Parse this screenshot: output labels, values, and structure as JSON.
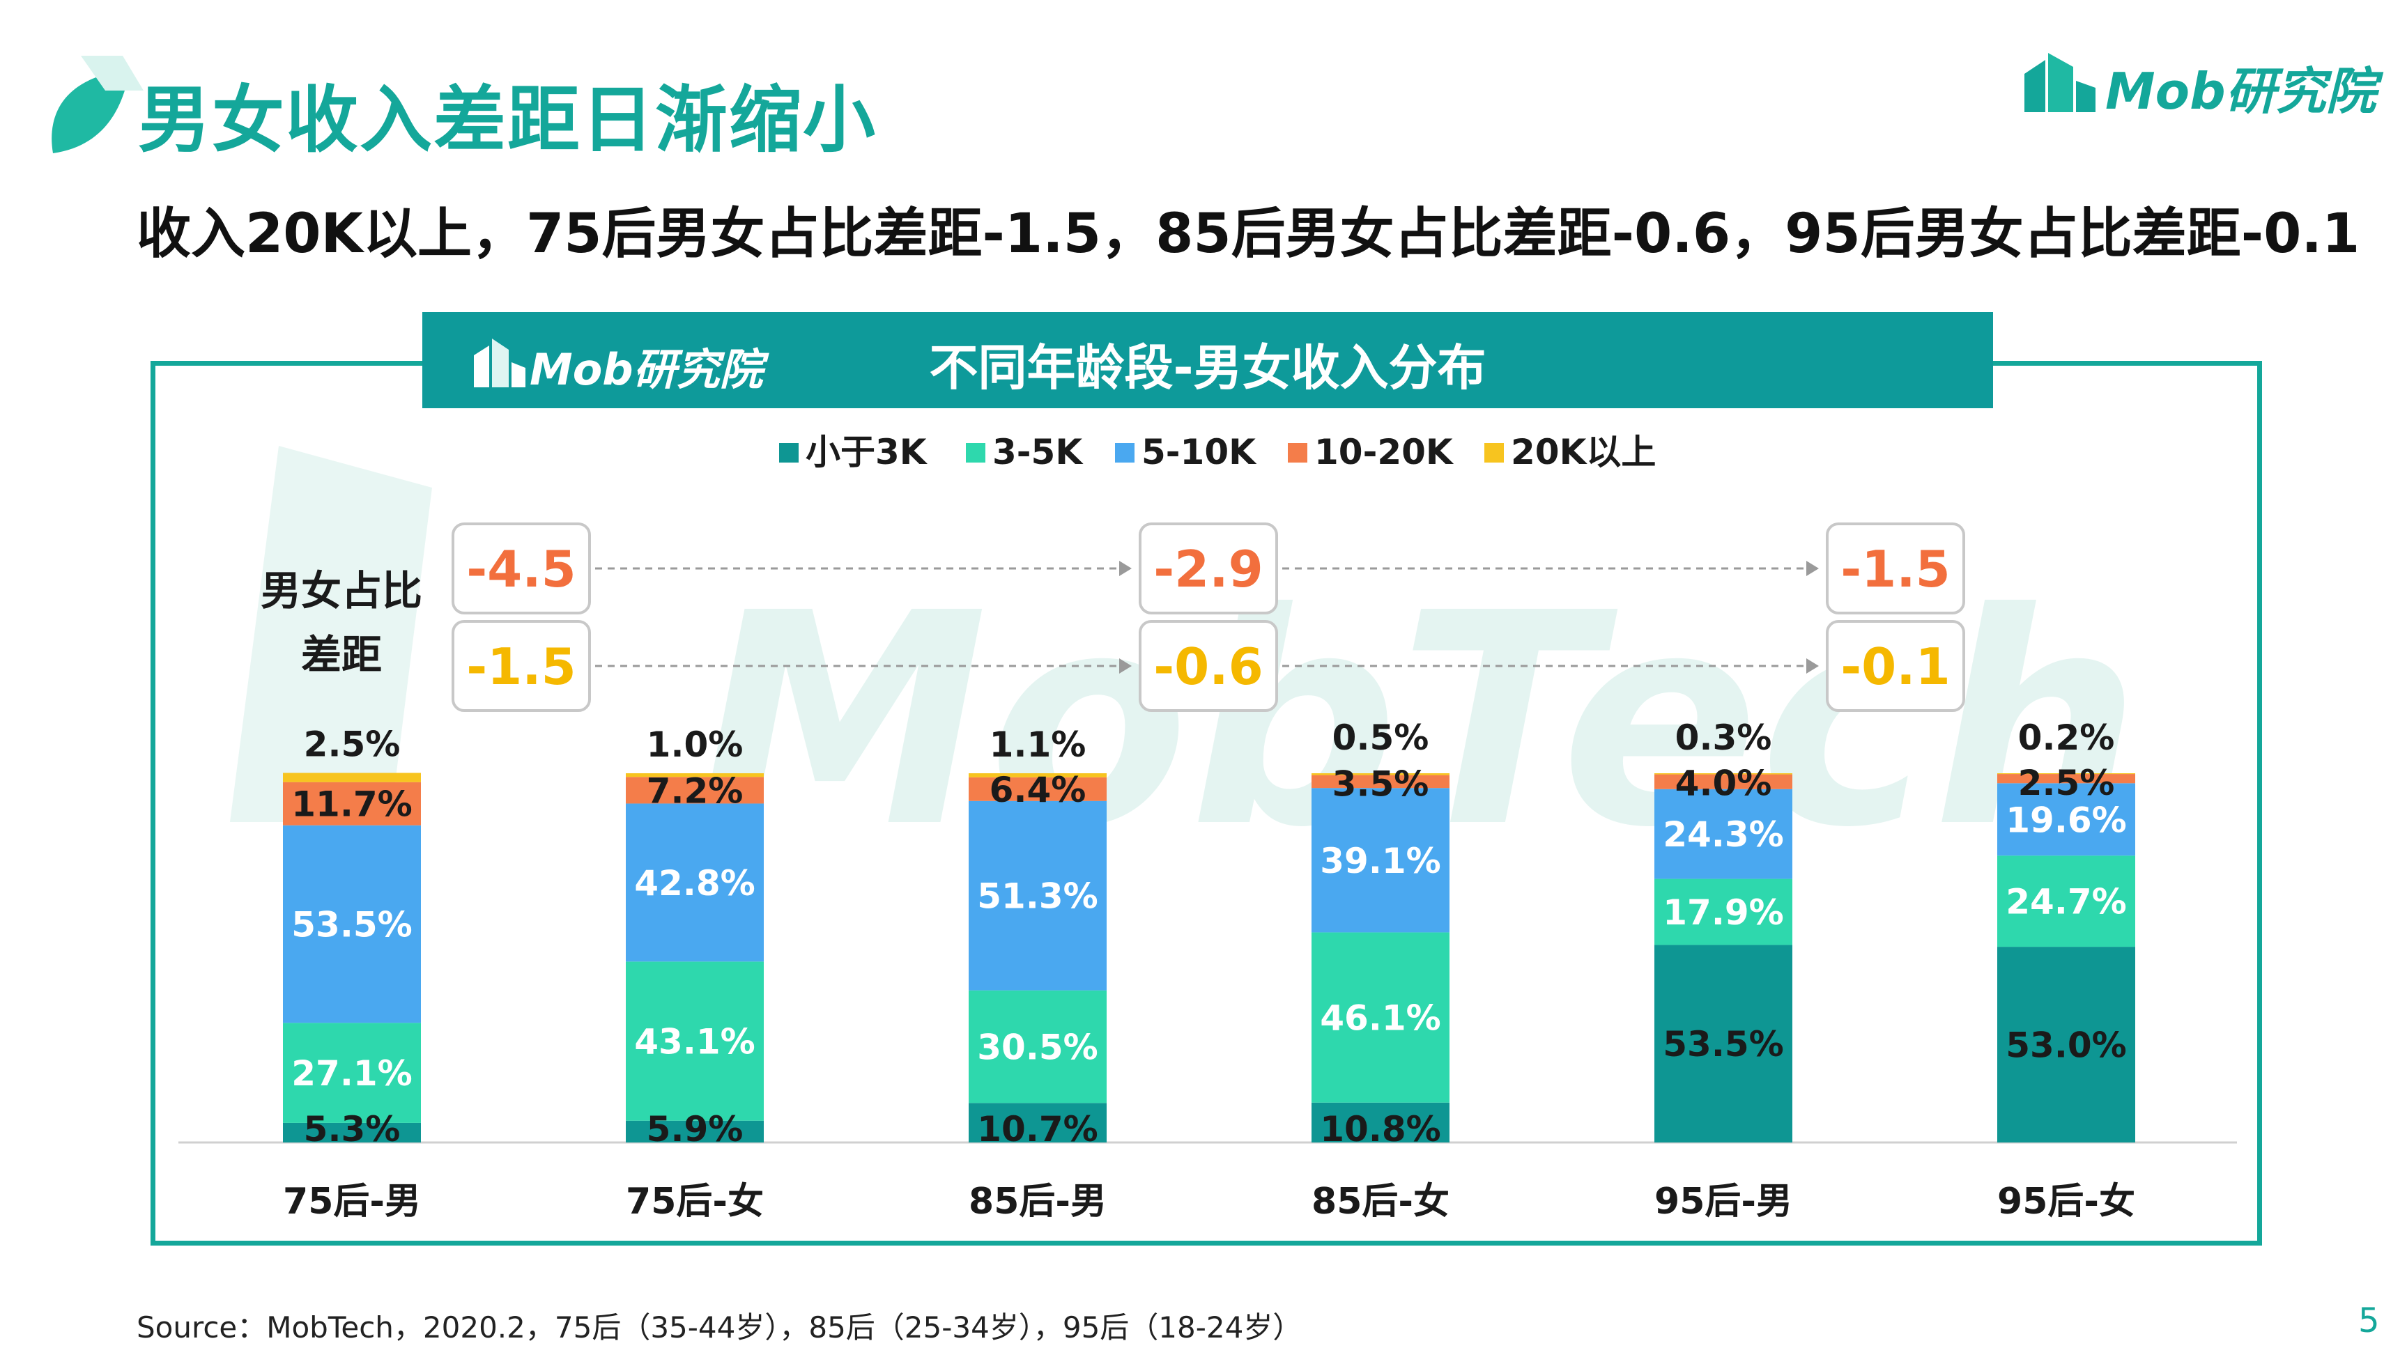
{
  "slide": {
    "title": "男女收入差距日渐缩小",
    "headline": "收入20K以上，75后男女占比差距-1.5，85后男女占比差距-0.6，95后男女占比差距-0.1",
    "logo_text": "Mob研究院",
    "source": "Source：MobTech，2020.2，75后（35-44岁），85后（25-34岁），95后（18-24岁）",
    "page_number": "5",
    "watermark": "MobTech"
  },
  "colors": {
    "accent": "#14a79a",
    "banner": "#0e9a9a",
    "diff_orange": "#f26f3d",
    "diff_yellow": "#f5b800"
  },
  "chart_data": {
    "type": "bar",
    "stacked": true,
    "title": "不同年龄段-男女收入分布",
    "categories": [
      "75后-男",
      "75后-女",
      "85后-男",
      "85后-女",
      "95后-男",
      "95后-女"
    ],
    "series": [
      {
        "name": "小于3K",
        "color": "#0e9693",
        "values": [
          5.3,
          5.9,
          10.7,
          10.8,
          53.5,
          53.0
        ]
      },
      {
        "name": "3-5K",
        "color": "#2ed8ad",
        "values": [
          27.1,
          43.1,
          30.5,
          46.1,
          17.9,
          24.7
        ]
      },
      {
        "name": "5-10K",
        "color": "#4aa8f0",
        "values": [
          53.5,
          42.8,
          51.3,
          39.1,
          24.3,
          19.6
        ]
      },
      {
        "name": "10-20K",
        "color": "#f47d4a",
        "values": [
          11.7,
          7.2,
          6.4,
          3.5,
          4.0,
          2.5
        ]
      },
      {
        "name": "20K以上",
        "color": "#f7c41f",
        "values": [
          2.5,
          1.0,
          1.1,
          0.5,
          0.3,
          0.2
        ]
      }
    ],
    "labels": [
      [
        "5.3%",
        "27.1%",
        "53.5%",
        "11.7%",
        "2.5%"
      ],
      [
        "5.9%",
        "43.1%",
        "42.8%",
        "7.2%",
        "1.0%"
      ],
      [
        "10.7%",
        "30.5%",
        "51.3%",
        "6.4%",
        "1.1%"
      ],
      [
        "10.8%",
        "46.1%",
        "39.1%",
        "3.5%",
        "0.5%"
      ],
      [
        "53.5%",
        "17.9%",
        "24.3%",
        "4.0%",
        "0.3%"
      ],
      [
        "53.0%",
        "24.7%",
        "19.6%",
        "2.5%",
        "0.2%"
      ]
    ],
    "ylim": [
      0,
      100
    ],
    "legend_position": "top-center",
    "diff_title": "男女占比差距",
    "diff_groups": [
      "75后",
      "85后",
      "95后"
    ],
    "diff_10_20k": [
      "-4.5",
      "-2.9",
      "-1.5"
    ],
    "diff_20k_plus": [
      "-1.5",
      "-0.6",
      "-0.1"
    ]
  }
}
